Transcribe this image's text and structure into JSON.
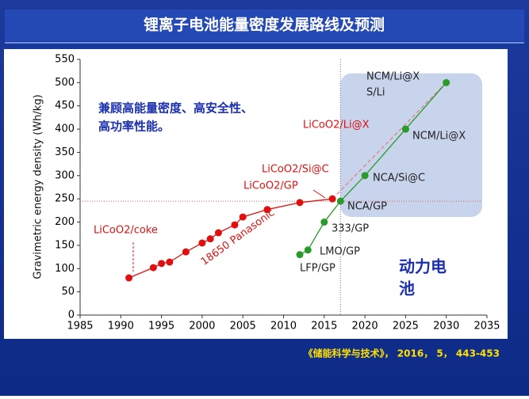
{
  "chart_data": {
    "type": "line",
    "title": "锂离子电池能量密度发展路线及预测",
    "source": "《储能科学与技术》， 2016， 5， 443-453",
    "y_label": "Gravimetric energy density (Wh/kg)",
    "xlim": [
      1985,
      2035
    ],
    "xticks": [
      1985,
      1990,
      1995,
      2000,
      2005,
      2010,
      2015,
      2020,
      2025,
      2030,
      2035
    ],
    "ylim": [
      0,
      550
    ],
    "yticks": [
      0,
      50,
      100,
      150,
      200,
      250,
      300,
      350,
      400,
      450,
      500,
      550
    ],
    "hline": 245,
    "vline": 2017,
    "series": [
      {
        "color": "#e01010",
        "x": [
          1991,
          1994,
          1995,
          1996,
          1998,
          2000,
          2001,
          2002,
          2004,
          2005,
          2008,
          2012,
          2016
        ],
        "values": [
          80,
          102,
          111,
          114,
          136,
          155,
          164,
          177,
          194,
          211,
          227,
          242,
          250
        ]
      },
      {
        "color": "#2a9a2a",
        "x": [
          2012,
          2013,
          2015,
          2017,
          2020,
          2025,
          2030
        ],
        "values": [
          130,
          140,
          200,
          245,
          300,
          400,
          500
        ]
      }
    ],
    "annotations": [
      "LiCoO2/coke",
      "18650 Panasonic",
      "LiCoO2/GP",
      "LiCoO2/Si@C",
      "LiCoO2/Li@X",
      "NCM/Li@X",
      "S/Li",
      "NCM/Li@X",
      "NCA/Si@C",
      "NCA/GP",
      "333/GP",
      "LMO/GP",
      "LFP/GP"
    ],
    "notes": [
      "兼顾高能量密度、高安全性、",
      "高功率性能。"
    ],
    "region_label": [
      "动力电",
      "池"
    ]
  }
}
